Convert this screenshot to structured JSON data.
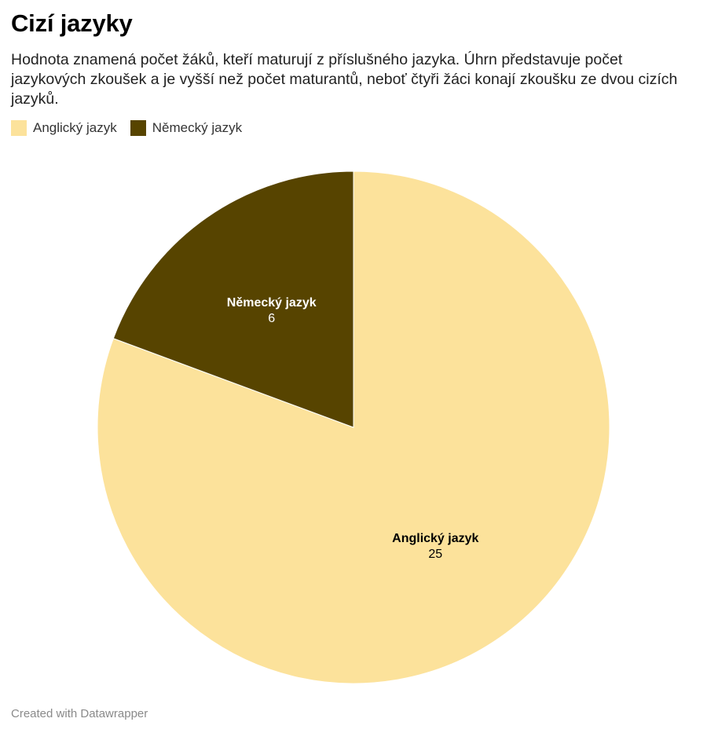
{
  "title": "Cizí jazyky",
  "subtitle": "Hodnota znamená počet žáků, kteří maturují z příslušného jazyka. Úhrn představuje počet jazykových zkoušek a je vyšší než počet maturantů, neboť čtyři žáci konají zkoušku ze dvou cizích jazyků.",
  "footer": "Created with Datawrapper",
  "colors": {
    "anglicky": "#fce29b",
    "nemecky": "#574400",
    "label_dark": "#000000",
    "label_light": "#ffffff"
  },
  "legend": [
    {
      "label": "Anglický jazyk",
      "color": "#fce29b"
    },
    {
      "label": "Německý jazyk",
      "color": "#574400"
    }
  ],
  "chart_data": {
    "type": "pie",
    "title": "Cizí jazyky",
    "slices": [
      {
        "label": "Anglický jazyk",
        "value": 25,
        "color": "#fce29b",
        "label_color": "#000000"
      },
      {
        "label": "Německý jazyk",
        "value": 6,
        "color": "#574400",
        "label_color": "#ffffff"
      }
    ],
    "start": "12 o'clock",
    "direction": "clockwise",
    "legend_position": "top-left"
  }
}
